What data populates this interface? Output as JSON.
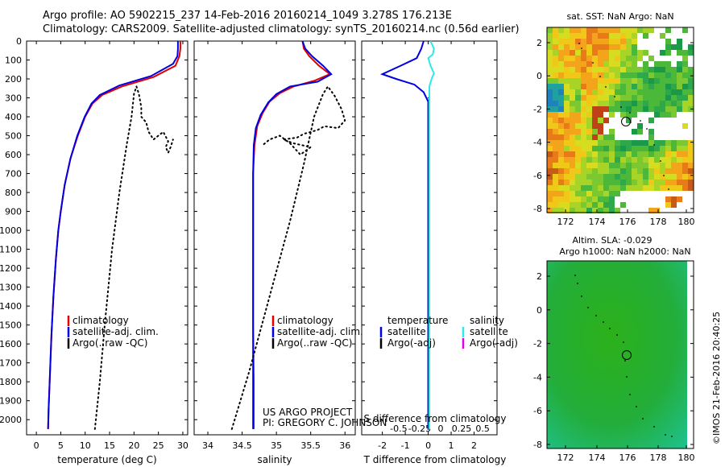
{
  "header": {
    "line1": "Argo profile: AO 5902215_237 14-Feb-2016 20160214_1049 3.278S 176.213E",
    "line2": "Climatology: CARS2009. Satellite-adjusted climatology: synTS_20160214.nc (0.56d earlier)"
  },
  "depth_axis": {
    "ticks": [
      0,
      100,
      200,
      300,
      400,
      500,
      600,
      700,
      800,
      900,
      1000,
      1100,
      1200,
      1300,
      1400,
      1500,
      1600,
      1700,
      1800,
      1900,
      2000
    ],
    "range": [
      0,
      2080
    ],
    "inverted": true
  },
  "colors": {
    "climatology": "#e00000",
    "satellite": "#0000e0",
    "argo": "#000000",
    "sal_satellite": "#30e8e8",
    "sal_argo": "#e000e0"
  },
  "chart_data": [
    {
      "type": "line",
      "xlabel": "temperature (deg C)",
      "xticks": [
        0,
        5,
        10,
        15,
        20,
        25,
        30
      ],
      "xlim": [
        -2,
        31
      ],
      "legend": [
        "climatology",
        "satellite-adj. clim.",
        "Argo(..raw -QC)"
      ],
      "series": [
        {
          "name": "climatology",
          "color": "#e00000",
          "style": "solid",
          "points": [
            [
              29.5,
              0
            ],
            [
              29.5,
              40
            ],
            [
              29.3,
              80
            ],
            [
              28.5,
              130
            ],
            [
              24,
              190
            ],
            [
              17.5,
              240
            ],
            [
              13.5,
              285
            ],
            [
              11.5,
              330
            ],
            [
              10,
              400
            ],
            [
              8.5,
              500
            ],
            [
              7,
              620
            ],
            [
              5.8,
              760
            ],
            [
              5,
              900
            ],
            [
              4.5,
              1000
            ],
            [
              4,
              1150
            ],
            [
              3.5,
              1350
            ],
            [
              3.1,
              1550
            ],
            [
              2.8,
              1750
            ],
            [
              2.5,
              1950
            ],
            [
              2.4,
              2050
            ]
          ]
        },
        {
          "name": "satellite-adj. clim.",
          "color": "#0000e0",
          "style": "solid",
          "points": [
            [
              29,
              0
            ],
            [
              29,
              40
            ],
            [
              28.9,
              80
            ],
            [
              28,
              120
            ],
            [
              23.5,
              185
            ],
            [
              17,
              235
            ],
            [
              13,
              285
            ],
            [
              11.3,
              330
            ],
            [
              9.9,
              400
            ],
            [
              8.4,
              500
            ],
            [
              7,
              620
            ],
            [
              5.8,
              760
            ],
            [
              5,
              900
            ],
            [
              4.5,
              1000
            ],
            [
              4,
              1150
            ],
            [
              3.5,
              1350
            ],
            [
              3.1,
              1550
            ],
            [
              2.8,
              1750
            ],
            [
              2.5,
              1950
            ],
            [
              2.4,
              2050
            ]
          ]
        },
        {
          "name": "Argo(..raw -QC)",
          "color": "#000000",
          "style": "dotted",
          "points": [
            [
              12,
              2050
            ],
            [
              13,
              1800
            ],
            [
              14,
              1500
            ],
            [
              15.5,
              1100
            ],
            [
              17,
              800
            ],
            [
              18.5,
              550
            ],
            [
              19.5,
              400
            ],
            [
              20,
              280
            ],
            [
              20.5,
              240
            ],
            [
              21,
              280
            ],
            [
              21.5,
              350
            ],
            [
              21.5,
              400
            ],
            [
              22.5,
              430
            ],
            [
              23,
              480
            ],
            [
              24,
              520
            ],
            [
              25,
              500
            ],
            [
              26,
              480
            ],
            [
              27,
              530
            ],
            [
              26.5,
              560
            ],
            [
              27,
              590
            ],
            [
              27.5,
              560
            ],
            [
              28,
              520
            ]
          ]
        }
      ]
    },
    {
      "type": "line",
      "xlabel": "salinity",
      "xticks": [
        34,
        34.5,
        35,
        35.5,
        36
      ],
      "xtick_labels": [
        "34",
        "34.5",
        "35",
        "35.5",
        "36"
      ],
      "xlim": [
        33.8,
        36.15
      ],
      "legend": [
        "climatology",
        "satellite-adj. clim.",
        "Argo(..raw -QC)"
      ],
      "annotation": [
        "US ARGO PROJECT",
        "PI: GREGORY C. JOHNSON"
      ],
      "series": [
        {
          "name": "climatology",
          "color": "#e00000",
          "style": "solid",
          "points": [
            [
              35.38,
              0
            ],
            [
              35.4,
              40
            ],
            [
              35.48,
              80
            ],
            [
              35.62,
              130
            ],
            [
              35.78,
              175
            ],
            [
              35.55,
              210
            ],
            [
              35.25,
              240
            ],
            [
              35.05,
              275
            ],
            [
              34.9,
              320
            ],
            [
              34.8,
              380
            ],
            [
              34.72,
              450
            ],
            [
              34.68,
              550
            ],
            [
              34.66,
              700
            ],
            [
              34.66,
              900
            ],
            [
              34.66,
              1200
            ],
            [
              34.66,
              1500
            ],
            [
              34.67,
              1800
            ],
            [
              34.67,
              2050
            ]
          ]
        },
        {
          "name": "satellite-adj. clim.",
          "color": "#0000e0",
          "style": "solid",
          "points": [
            [
              35.38,
              0
            ],
            [
              35.42,
              40
            ],
            [
              35.52,
              80
            ],
            [
              35.68,
              130
            ],
            [
              35.8,
              175
            ],
            [
              35.6,
              215
            ],
            [
              35.2,
              240
            ],
            [
              35.0,
              280
            ],
            [
              34.88,
              325
            ],
            [
              34.77,
              390
            ],
            [
              34.7,
              460
            ],
            [
              34.67,
              550
            ],
            [
              34.66,
              700
            ],
            [
              34.66,
              900
            ],
            [
              34.66,
              1200
            ],
            [
              34.66,
              1500
            ],
            [
              34.66,
              1800
            ],
            [
              34.66,
              2050
            ]
          ]
        },
        {
          "name": "Argo(..raw -QC)",
          "color": "#000000",
          "style": "dotted",
          "points": [
            [
              34.35,
              2050
            ],
            [
              34.6,
              1750
            ],
            [
              34.9,
              1350
            ],
            [
              35.2,
              950
            ],
            [
              35.4,
              650
            ],
            [
              35.55,
              400
            ],
            [
              35.68,
              280
            ],
            [
              35.75,
              240
            ],
            [
              35.85,
              290
            ],
            [
              35.95,
              360
            ],
            [
              36,
              420
            ],
            [
              35.9,
              460
            ],
            [
              35.7,
              450
            ],
            [
              35.6,
              470
            ],
            [
              35.4,
              490
            ],
            [
              35.3,
              510
            ],
            [
              35.1,
              520
            ],
            [
              35.25,
              540
            ],
            [
              35.5,
              560
            ],
            [
              35.35,
              600
            ],
            [
              35.2,
              540
            ],
            [
              35.05,
              500
            ],
            [
              34.9,
              520
            ],
            [
              34.8,
              550
            ]
          ]
        }
      ]
    },
    {
      "type": "line",
      "xlabel": "T difference from climatology",
      "top_label": "S difference from climatology",
      "xticks": [
        -2,
        -1,
        0,
        1,
        2
      ],
      "xlim": [
        -2.9,
        3.0
      ],
      "s_ticks": [
        -0.5,
        -0.25,
        0,
        0.25,
        0.5
      ],
      "s_tick_labels": [
        "-0.5",
        "-0.25",
        "0",
        "0.25",
        "0.5"
      ],
      "legend_headers": [
        "temperature",
        "salinity"
      ],
      "legend": [
        "satellite",
        "Argo(-adj)",
        "satellite",
        "Argo(-adj)"
      ],
      "series": [
        {
          "name": "satellite",
          "color": "#0000e0",
          "style": "solid",
          "points": [
            [
              -0.2,
              0
            ],
            [
              -0.3,
              40
            ],
            [
              -0.5,
              90
            ],
            [
              -1.2,
              130
            ],
            [
              -2.0,
              175
            ],
            [
              -1.4,
              200
            ],
            [
              -0.6,
              230
            ],
            [
              -0.2,
              270
            ],
            [
              0,
              320
            ],
            [
              0,
              400
            ],
            [
              0,
              600
            ],
            [
              0,
              1000
            ],
            [
              0,
              1500
            ],
            [
              0,
              2050
            ]
          ]
        },
        {
          "name": "satellite",
          "color": "#30e8e8",
          "style": "solid",
          "points": [
            [
              0.1,
              0
            ],
            [
              0.25,
              40
            ],
            [
              0.2,
              70
            ],
            [
              0,
              90
            ],
            [
              0.1,
              130
            ],
            [
              0.25,
              170
            ],
            [
              0.15,
              200
            ],
            [
              0.05,
              240
            ],
            [
              0.05,
              300
            ],
            [
              0.05,
              400
            ],
            [
              0.05,
              700
            ],
            [
              0.05,
              1100
            ],
            [
              0.05,
              1500
            ],
            [
              0.05,
              2050
            ]
          ]
        }
      ]
    }
  ],
  "maps": {
    "sst": {
      "title": "sat. SST: NaN Argo: NaN",
      "xticks": [
        "172",
        "174",
        "176",
        "178",
        "180"
      ],
      "yticks": [
        "2",
        "0",
        "-2",
        "-4",
        "-6",
        "-8"
      ]
    },
    "sla": {
      "title1": "Altim. SLA: -0.029",
      "title2": "Argo h1000: NaN h2000: NaN",
      "xticks": [
        "172",
        "174",
        "176",
        "178",
        "180"
      ],
      "yticks": [
        "2",
        "0",
        "-2",
        "-4",
        "-6",
        "-8"
      ]
    },
    "footer": "©IMOS 21-Feb-2016 20:40:25"
  }
}
